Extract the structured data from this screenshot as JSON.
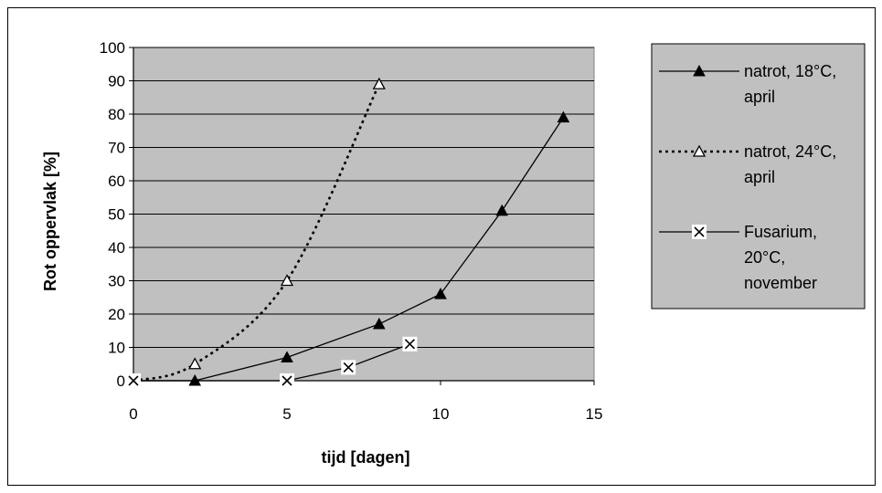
{
  "chart_data": {
    "type": "line",
    "xlabel": "tijd [dagen]",
    "ylabel": "Rot oppervlak [%]",
    "xlim": [
      0,
      15
    ],
    "ylim": [
      0,
      100
    ],
    "xticks": [
      0,
      5,
      10,
      15
    ],
    "yticks": [
      0,
      10,
      20,
      30,
      40,
      50,
      60,
      70,
      80,
      90,
      100
    ],
    "grid": "horizontal",
    "plot_background": "#c0c0c0",
    "legend_position": "right",
    "series": [
      {
        "name_lines": [
          "natrot, 18°C,",
          "april"
        ],
        "marker": "filled-triangle",
        "line_style": "solid",
        "color": "#000000",
        "points": [
          [
            0,
            0
          ],
          [
            2,
            0
          ],
          [
            5,
            7
          ],
          [
            8,
            17
          ],
          [
            10,
            26
          ],
          [
            12,
            51
          ],
          [
            14,
            79
          ]
        ]
      },
      {
        "name_lines": [
          "natrot, 24°C,",
          "april"
        ],
        "marker": "open-triangle",
        "line_style": "dotted",
        "color": "#000000",
        "points": [
          [
            0,
            0
          ],
          [
            2,
            5
          ],
          [
            5,
            30
          ],
          [
            8,
            89
          ]
        ]
      },
      {
        "name_lines": [
          "Fusarium,",
          "20°C,",
          "november"
        ],
        "marker": "x-box",
        "line_style": "solid",
        "color": "#000000",
        "points": [
          [
            0,
            0
          ],
          [
            5,
            0
          ],
          [
            7,
            4
          ],
          [
            9,
            11
          ]
        ]
      }
    ]
  }
}
